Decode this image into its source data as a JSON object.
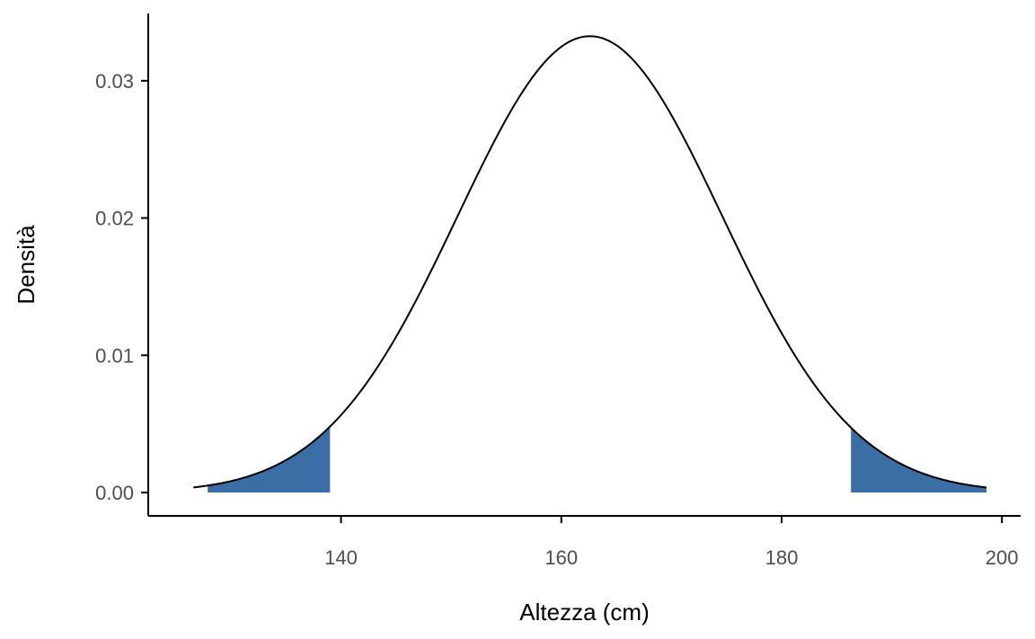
{
  "chart_data": {
    "type": "area",
    "title": "",
    "xlabel": "Altezza (cm)",
    "ylabel": "Densità",
    "xlim": [
      122.5,
      201.7
    ],
    "ylim": [
      -0.0017,
      0.0349
    ],
    "x_ticks": [
      140,
      160,
      180,
      200
    ],
    "x_tick_labels": [
      "140",
      "160",
      "180",
      "200"
    ],
    "y_ticks": [
      0,
      0.01,
      0.02,
      0.03
    ],
    "y_tick_labels": [
      "0.00",
      "0.01",
      "0.02",
      "0.03"
    ],
    "distribution": {
      "family": "normal",
      "mean": 162.6,
      "sd": 12.0
    },
    "curve_range": [
      126.6,
      198.6
    ],
    "shaded_regions": [
      {
        "from": 127.9,
        "to": 139.0
      },
      {
        "from": 186.3,
        "to": 198.6
      }
    ],
    "grid": false,
    "legend": "none",
    "colors": {
      "curve": "#000000",
      "shade": "#3a6ea5"
    }
  }
}
